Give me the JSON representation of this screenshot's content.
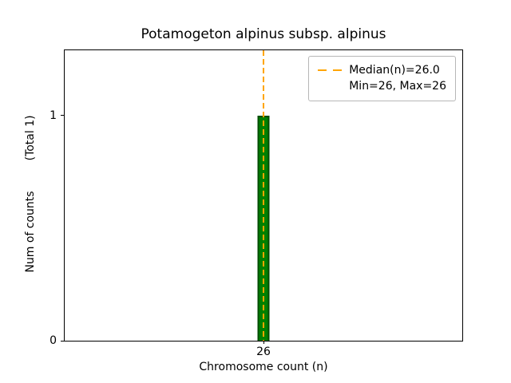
{
  "chart_data": {
    "type": "bar",
    "title": "Potamogeton alpinus subsp. alpinus",
    "xlabel": "Chromosome count (n)",
    "ylabel": "Num of counts",
    "ylabel_secondary": "(Total 1)",
    "categories": [
      "26"
    ],
    "values": [
      1
    ],
    "ytick_labels": [
      "0",
      "1"
    ],
    "ytick_values": [
      0,
      1
    ],
    "ylim": [
      0,
      1.29
    ],
    "median": 26.0,
    "min": 26,
    "max": 26,
    "legend": {
      "position": "upper right",
      "entries": [
        "Median(n)=26.0",
        "Min=26, Max=26"
      ]
    },
    "colors": {
      "bar_fill": "#008000",
      "bar_edge": "#004d00",
      "median_line": "#FFA500"
    },
    "grid": false
  }
}
